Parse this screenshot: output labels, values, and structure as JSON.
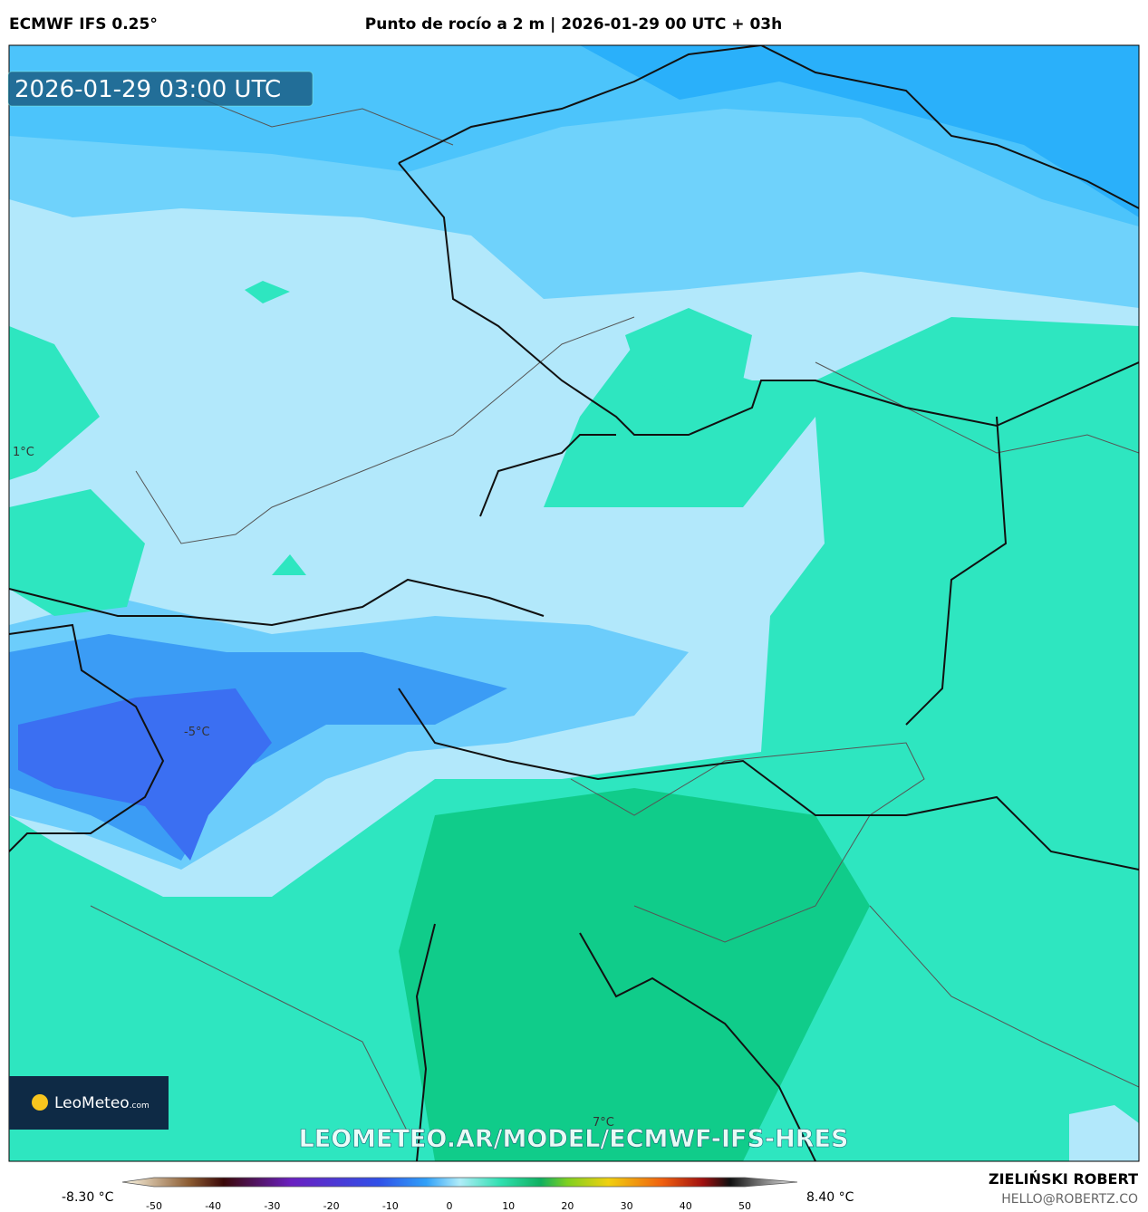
{
  "header": {
    "model": "ECMWF IFS 0.25°",
    "title": "Punto de rocío a 2 m | 2026-01-29 00 UTC + 03h"
  },
  "map": {
    "timestamp": "2026-01-29 03:00 UTC",
    "contour_labels": [
      "1°C",
      "-5°C",
      "7°C"
    ],
    "logo": "LeoMeteo",
    "logo_suffix": ".com",
    "watermark": "LEOMETEO.AR/MODEL/ECMWF-IFS-HRES"
  },
  "colorbar": {
    "min_label": "-8.30 °C",
    "max_label": "8.40 °C",
    "ticks": [
      -50,
      -40,
      -30,
      -20,
      -10,
      0,
      10,
      20,
      30,
      40,
      50
    ]
  },
  "footer": {
    "author": "ZIELIŃSKI ROBERT",
    "contact": "HELLO@ROBERTZ.CO"
  }
}
